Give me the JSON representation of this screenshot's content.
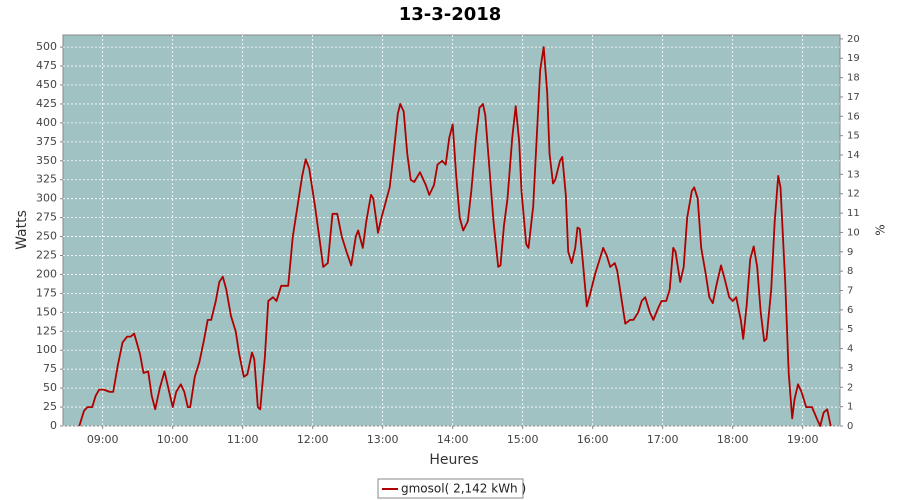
{
  "chart_data": {
    "type": "line",
    "title": "13-3-2018",
    "x_label": "Heures",
    "y_label": "Watts",
    "y2_label": "%",
    "x": [
      "08:40",
      "08:44",
      "08:47",
      "08:51",
      "08:54",
      "08:57",
      "09:01",
      "09:06",
      "09:09",
      "09:13",
      "09:17",
      "09:21",
      "09:24",
      "09:27",
      "09:32",
      "09:35",
      "09:39",
      "09:42",
      "09:45",
      "09:49",
      "09:53",
      "09:57",
      "10:00",
      "10:03",
      "10:07",
      "10:10",
      "10:13",
      "10:15",
      "10:19",
      "10:23",
      "10:27",
      "10:30",
      "10:33",
      "10:37",
      "10:40",
      "10:43",
      "10:46",
      "10:50",
      "10:54",
      "10:57",
      "11:01",
      "11:04",
      "11:08",
      "11:10",
      "11:13",
      "11:15",
      "11:19",
      "11:22",
      "11:26",
      "11:29",
      "11:33",
      "11:39",
      "11:43",
      "11:47",
      "11:51",
      "11:54",
      "11:57",
      "12:02",
      "12:06",
      "12:09",
      "12:13",
      "12:17",
      "12:21",
      "12:25",
      "12:29",
      "12:33",
      "12:37",
      "12:39",
      "12:43",
      "12:46",
      "12:50",
      "12:52",
      "12:56",
      "12:59",
      "13:03",
      "13:06",
      "13:09",
      "13:13",
      "13:15",
      "13:18",
      "13:21",
      "13:24",
      "13:27",
      "13:32",
      "13:37",
      "13:40",
      "13:44",
      "13:47",
      "13:51",
      "13:54",
      "13:57",
      "14:00",
      "14:03",
      "14:06",
      "14:09",
      "14:13",
      "14:16",
      "14:20",
      "14:23",
      "14:26",
      "14:28",
      "14:32",
      "14:35",
      "14:39",
      "14:41",
      "14:44",
      "14:47",
      "14:51",
      "14:54",
      "14:57",
      "14:59",
      "15:03",
      "15:05",
      "15:09",
      "15:12",
      "15:15",
      "15:18",
      "15:21",
      "15:23",
      "15:26",
      "15:28",
      "15:32",
      "15:34",
      "15:37",
      "15:39",
      "15:42",
      "15:45",
      "15:47",
      "15:49",
      "15:52",
      "15:55",
      "15:58",
      "16:02",
      "16:05",
      "16:09",
      "16:12",
      "16:15",
      "16:19",
      "16:21",
      "16:25",
      "16:28",
      "16:32",
      "16:35",
      "16:39",
      "16:42",
      "16:45",
      "16:49",
      "16:52",
      "16:56",
      "16:59",
      "17:03",
      "17:06",
      "17:09",
      "17:11",
      "17:15",
      "17:18",
      "17:21",
      "17:25",
      "17:27",
      "17:30",
      "17:33",
      "17:37",
      "17:40",
      "17:43",
      "17:46",
      "17:50",
      "17:53",
      "17:57",
      "18:00",
      "18:03",
      "18:07",
      "18:09",
      "18:12",
      "18:15",
      "18:18",
      "18:21",
      "18:24",
      "18:27",
      "18:29",
      "18:33",
      "18:36",
      "18:39",
      "18:41",
      "18:45",
      "18:48",
      "18:51",
      "18:53",
      "18:56",
      "18:59",
      "19:03",
      "19:08",
      "19:12",
      "19:15",
      "19:18",
      "19:21",
      "19:24"
    ],
    "series": [
      {
        "name": "gmosol( 2,142 kWh )",
        "color": "#b00000",
        "values": [
          0,
          20,
          25,
          25,
          40,
          48,
          48,
          45,
          45,
          80,
          110,
          118,
          118,
          122,
          95,
          70,
          72,
          40,
          22,
          50,
          72,
          45,
          25,
          45,
          55,
          45,
          25,
          25,
          65,
          85,
          115,
          140,
          140,
          165,
          190,
          197,
          180,
          145,
          125,
          95,
          65,
          68,
          97,
          88,
          25,
          22,
          90,
          165,
          170,
          165,
          185,
          185,
          250,
          290,
          330,
          352,
          340,
          290,
          245,
          210,
          215,
          280,
          280,
          250,
          230,
          212,
          250,
          258,
          235,
          270,
          305,
          300,
          255,
          275,
          298,
          315,
          355,
          412,
          425,
          415,
          360,
          325,
          322,
          335,
          318,
          305,
          318,
          345,
          350,
          345,
          380,
          398,
          330,
          275,
          258,
          270,
          310,
          380,
          420,
          425,
          410,
          330,
          270,
          210,
          212,
          265,
          300,
          380,
          422,
          375,
          310,
          240,
          235,
          290,
          380,
          470,
          500,
          440,
          360,
          320,
          325,
          350,
          355,
          305,
          230,
          215,
          235,
          262,
          260,
          210,
          158,
          175,
          200,
          215,
          235,
          225,
          210,
          215,
          205,
          165,
          135,
          140,
          140,
          150,
          165,
          170,
          150,
          140,
          155,
          165,
          165,
          180,
          235,
          230,
          190,
          210,
          275,
          310,
          315,
          300,
          235,
          200,
          170,
          162,
          185,
          212,
          195,
          170,
          165,
          170,
          140,
          115,
          160,
          220,
          237,
          210,
          150,
          112,
          115,
          180,
          270,
          330,
          315,
          190,
          70,
          10,
          35,
          55,
          45,
          25,
          25,
          10,
          0,
          18,
          22,
          0
        ]
      }
    ],
    "xlim": [
      "08:26",
      "19:32"
    ],
    "xticks": [
      "09:00",
      "10:00",
      "11:00",
      "12:00",
      "13:00",
      "14:00",
      "15:00",
      "16:00",
      "17:00",
      "18:00",
      "19:00"
    ],
    "ylim": [
      0,
      516
    ],
    "yticks": [
      0,
      25,
      50,
      75,
      100,
      125,
      150,
      175,
      200,
      225,
      250,
      275,
      300,
      325,
      350,
      375,
      400,
      425,
      450,
      475,
      500
    ],
    "y2lim": [
      0,
      20.2
    ],
    "y2ticks": [
      0,
      1,
      2,
      3,
      4,
      5,
      6,
      7,
      8,
      9,
      10,
      11,
      12,
      13,
      14,
      15,
      16,
      17,
      18,
      19,
      20
    ],
    "grid": true
  }
}
